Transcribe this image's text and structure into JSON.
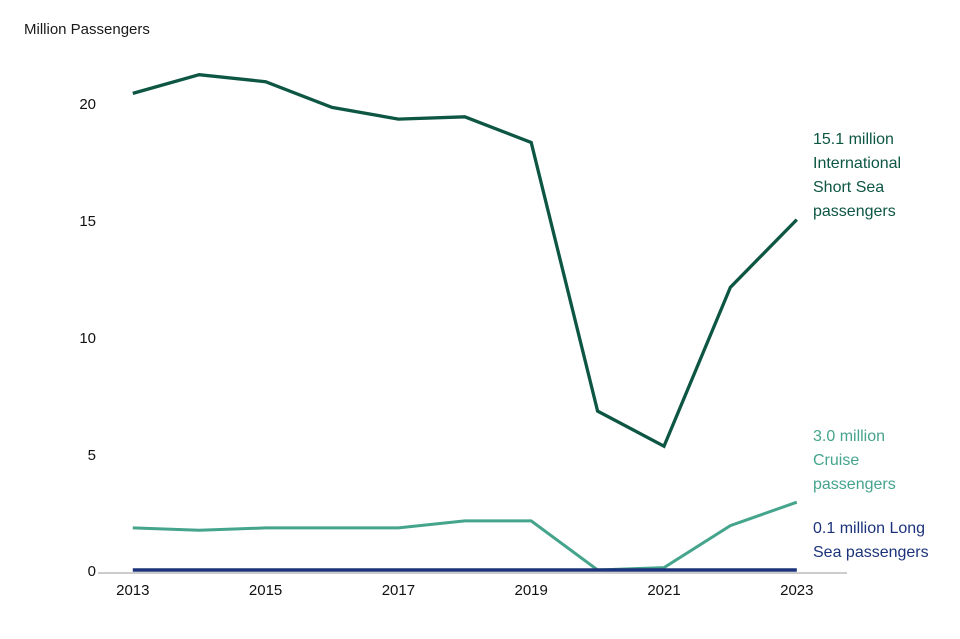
{
  "chart_data": {
    "type": "line",
    "title": "",
    "ylabel": "Million Passengers",
    "xlabel": "",
    "x": [
      2013,
      2014,
      2015,
      2016,
      2017,
      2018,
      2019,
      2020,
      2021,
      2022,
      2023
    ],
    "xticks": [
      "2013",
      "2015",
      "2017",
      "2019",
      "2021",
      "2023"
    ],
    "yticks": [
      "0",
      "5",
      "10",
      "15",
      "20"
    ],
    "ylim": [
      0,
      21.5
    ],
    "grid": false,
    "legend_position": "end-of-line-annotations",
    "axis_color": "#cccccc",
    "series": [
      {
        "name": "International Short Sea passengers",
        "color": "#0d5643",
        "values": [
          20.5,
          21.3,
          21.0,
          19.9,
          19.4,
          19.5,
          18.4,
          6.9,
          5.4,
          12.2,
          15.1
        ]
      },
      {
        "name": "Cruise passengers",
        "color": "#45a48c",
        "values": [
          1.9,
          1.8,
          1.9,
          1.9,
          1.9,
          2.2,
          2.2,
          0.1,
          0.2,
          2.0,
          3.0
        ]
      },
      {
        "name": "Long Sea passengers",
        "color": "#1c337b",
        "values": [
          0.1,
          0.1,
          0.1,
          0.1,
          0.1,
          0.1,
          0.1,
          0.1,
          0.1,
          0.1,
          0.1
        ]
      }
    ],
    "annotations": [
      {
        "series": "International Short Sea passengers",
        "lines": [
          "15.1 million",
          "International",
          "Short Sea",
          "passengers"
        ]
      },
      {
        "series": "Cruise passengers",
        "lines": [
          "3.0 million",
          "Cruise",
          "passengers"
        ]
      },
      {
        "series": "Long Sea passengers",
        "lines": [
          "0.1 million Long",
          "Sea passengers"
        ]
      }
    ]
  }
}
